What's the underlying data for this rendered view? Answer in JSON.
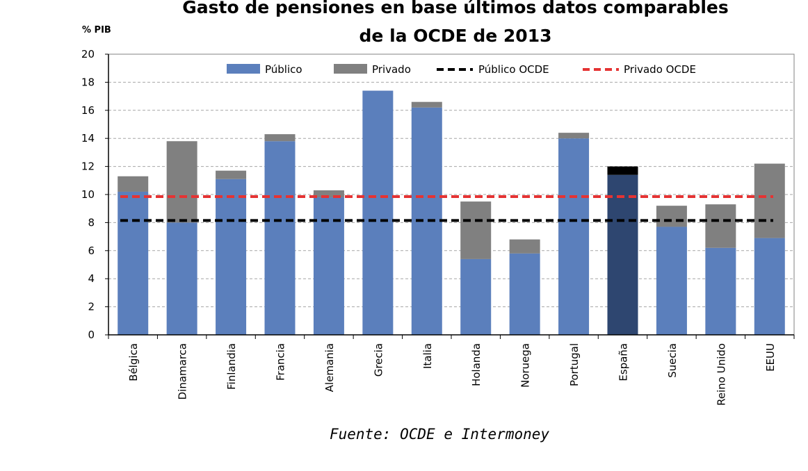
{
  "chart_data": {
    "type": "bar",
    "stacked": true,
    "title_lines": [
      "Gasto de pensiones en base últimos datos comparables",
      "de la OCDE de 2013"
    ],
    "ylabel": "% PIB",
    "xlabel": "",
    "ylim": [
      0,
      20
    ],
    "yticks": [
      0,
      2,
      4,
      6,
      8,
      10,
      12,
      14,
      16,
      18,
      20
    ],
    "grid": true,
    "legend_position": "top",
    "categories": [
      "Bélgica",
      "Dinamarca",
      "Finlandia",
      "Francia",
      "Alemania",
      "Grecia",
      "Italia",
      "Holanda",
      "Noruega",
      "Portugal",
      "España",
      "Suecia",
      "Reino Unido",
      "EEUU"
    ],
    "series": [
      {
        "name": "Público",
        "color": "#5b7fbc",
        "values": [
          10.2,
          8.0,
          11.1,
          13.8,
          9.8,
          17.4,
          16.2,
          5.4,
          5.8,
          14.0,
          11.4,
          7.7,
          6.2,
          6.9
        ]
      },
      {
        "name": "Privado",
        "color": "#808080",
        "values": [
          1.1,
          5.8,
          0.6,
          0.5,
          0.5,
          0.0,
          0.4,
          4.1,
          1.0,
          0.4,
          0.6,
          1.5,
          3.1,
          5.3
        ]
      }
    ],
    "highlight": {
      "category": "España",
      "public_color": "#2e4670",
      "private_color": "#000000"
    },
    "reference_lines": [
      {
        "name": "Público OCDE",
        "value": 8.15,
        "color": "#000000",
        "style": "dashed"
      },
      {
        "name": "Privado OCDE",
        "value": 9.85,
        "color": "#e53333",
        "style": "dashed"
      }
    ],
    "source": "Fuente: OCDE e Intermoney"
  }
}
